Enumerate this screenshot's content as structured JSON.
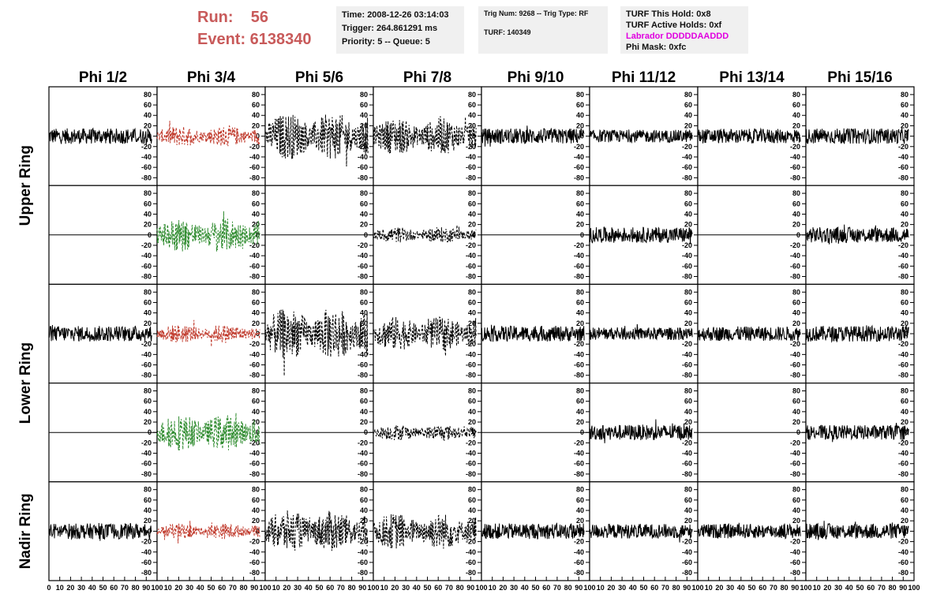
{
  "header": {
    "run_label": "Run:    56",
    "event_label": "Event: 6138340",
    "time": "Time: 2008-12-26 03:14:03",
    "trigger": "Trigger: 264.861291 ms",
    "priority": "Priority: 5 -- Queue: 5",
    "trig_num": "Trig Num: 9268 -- Trig Type: RF",
    "turf": "TURF: 140349",
    "turf_this_hold": "TURF This Hold: 0x8",
    "turf_active_holds": "TURF Active Holds: 0xf",
    "labrador": "Labrador DDDDDAADDD",
    "phi_mask": "Phi Mask: 0xfc"
  },
  "colors": {
    "run_text": "#c85a5a",
    "labrador": "#e000e0",
    "red_trace": "#c0392b",
    "green_trace": "#2e8b2e",
    "black_trace": "#000000",
    "panel_bg": "#f0f0f0"
  },
  "columns": [
    "Phi 1/2",
    "Phi 3/4",
    "Phi 5/6",
    "Phi 7/8",
    "Phi 9/10",
    "Phi 11/12",
    "Phi 13/14",
    "Phi 15/16"
  ],
  "row_titles": [
    "Upper Ring",
    "Lower Ring",
    "Nadir Ring"
  ],
  "chart_data": {
    "type": "line",
    "ylim": [
      -95,
      95
    ],
    "xlim": [
      0,
      100
    ],
    "yticks": [
      -80,
      -60,
      -40,
      -20,
      0,
      20,
      40,
      60,
      80
    ],
    "ytick_labels": [
      "-80",
      "-60",
      "-40",
      "-20",
      "0",
      "20",
      "40",
      "60",
      "80"
    ],
    "xticks": [
      0,
      10,
      20,
      30,
      40,
      50,
      60,
      70,
      80,
      90,
      100
    ],
    "xtick_labels": [
      "0",
      "10",
      "20",
      "30",
      "40",
      "50",
      "60",
      "70",
      "80",
      "90",
      "100"
    ],
    "panel_rows": 5,
    "panel_cols": 8,
    "traces": [
      [
        "solid-black",
        "dashed-red",
        "dashed-black",
        "dashed-black",
        "solid-black",
        "solid-black",
        "solid-black",
        "solid-black"
      ],
      [
        "flat",
        "dashed-green",
        "flat",
        "dashed-black",
        "flat",
        "solid-black",
        "flat",
        "solid-black"
      ],
      [
        "solid-black",
        "dashed-red",
        "dashed-black",
        "dashed-black",
        "solid-black",
        "solid-black",
        "solid-black",
        "solid-black"
      ],
      [
        "flat",
        "dashed-green",
        "flat",
        "dashed-black",
        "flat",
        "solid-black",
        "flat",
        "solid-black"
      ],
      [
        "solid-black",
        "dashed-red",
        "dashed-black",
        "dashed-black",
        "solid-black",
        "solid-black",
        "solid-black",
        "solid-black"
      ]
    ],
    "amplitudes": [
      [
        15,
        20,
        45,
        35,
        15,
        12,
        14,
        15
      ],
      [
        0,
        32,
        0,
        15,
        0,
        15,
        0,
        15
      ],
      [
        15,
        18,
        50,
        33,
        15,
        12,
        14,
        15
      ],
      [
        0,
        35,
        0,
        15,
        0,
        15,
        0,
        14
      ],
      [
        15,
        15,
        40,
        35,
        15,
        14,
        14,
        15
      ]
    ]
  }
}
